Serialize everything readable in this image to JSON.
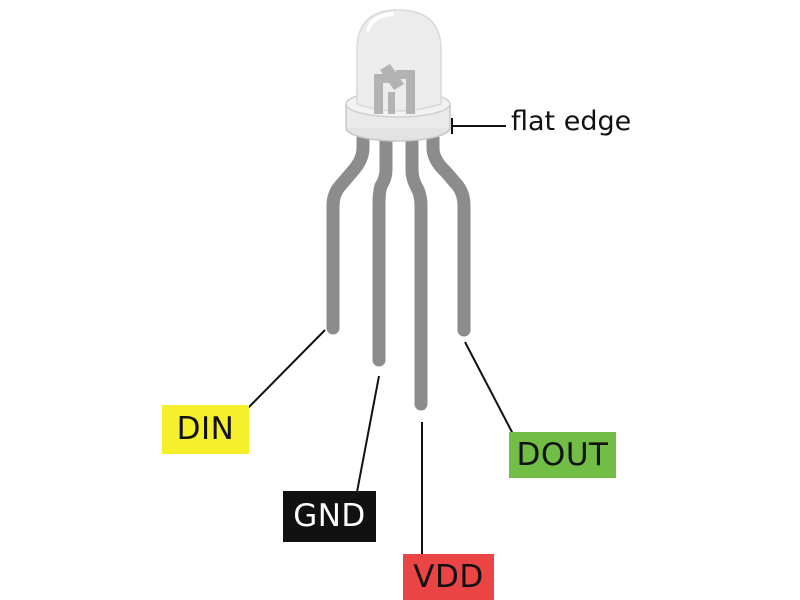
{
  "annotation": {
    "flat_edge": "flat edge"
  },
  "pins": [
    {
      "id": "din",
      "label": "DIN",
      "color": "#f5ef2c"
    },
    {
      "id": "gnd",
      "label": "GND",
      "color": "#111111"
    },
    {
      "id": "vdd",
      "label": "VDD",
      "color": "#ea4444"
    },
    {
      "id": "dout",
      "label": "DOUT",
      "color": "#72bd45"
    }
  ],
  "colors": {
    "lead": "#8c8c8c",
    "lens": "#ececec",
    "die": "#b3b3b3",
    "leader_line": "#111111"
  }
}
